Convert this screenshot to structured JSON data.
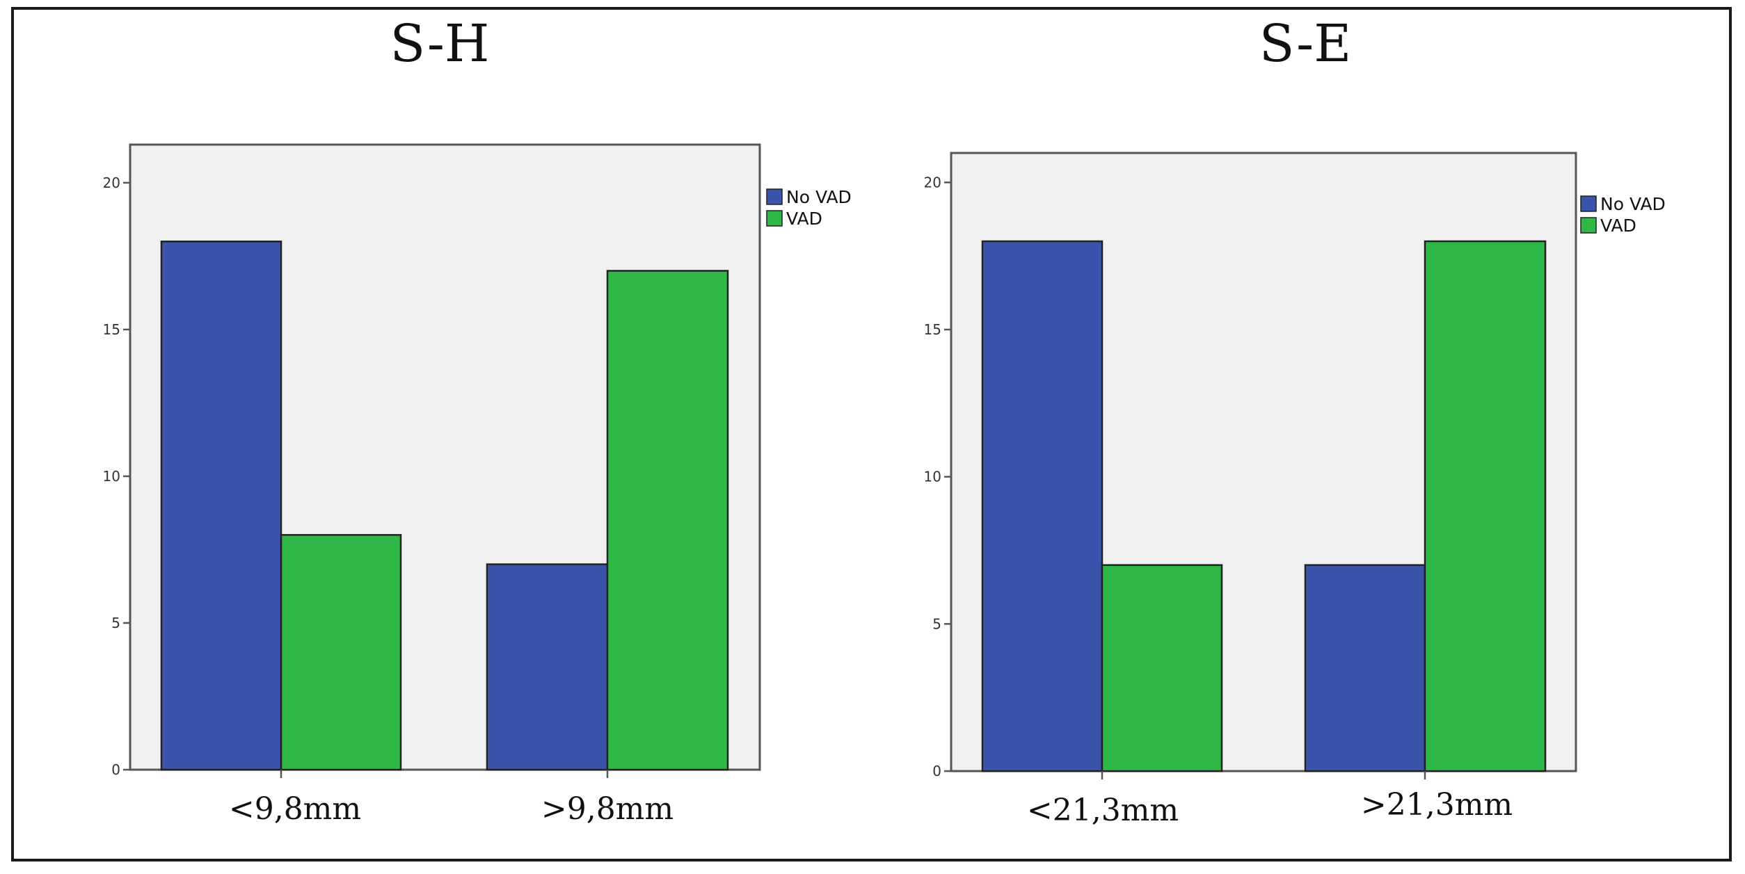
{
  "colors": {
    "no_vad": "#3a54ac",
    "vad": "#2fb847"
  },
  "chart_data": [
    {
      "type": "bar",
      "title": "S-H",
      "categories": [
        "<9,8mm",
        ">9,8mm"
      ],
      "series": [
        {
          "name": "No VAD",
          "values": [
            18,
            7
          ]
        },
        {
          "name": "VAD",
          "values": [
            8,
            17
          ]
        }
      ],
      "yticks": [
        0,
        5,
        10,
        15,
        20
      ],
      "ylim": [
        0,
        21.3
      ],
      "legend_position": "top-right",
      "grid": false
    },
    {
      "type": "bar",
      "title": "S-E",
      "categories": [
        "<21,3mm",
        ">21,3mm"
      ],
      "series": [
        {
          "name": "No VAD",
          "values": [
            18,
            7
          ]
        },
        {
          "name": "VAD",
          "values": [
            7,
            18
          ]
        }
      ],
      "yticks": [
        0,
        5,
        10,
        15,
        20
      ],
      "ylim": [
        0,
        21.0
      ],
      "legend_position": "top-right",
      "grid": false
    }
  ]
}
